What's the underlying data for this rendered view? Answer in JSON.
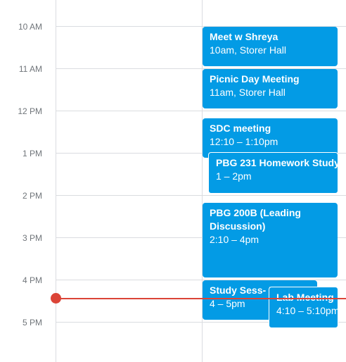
{
  "hours": [
    {
      "label": "10 AM"
    },
    {
      "label": "11 AM"
    },
    {
      "label": "12 PM"
    },
    {
      "label": "1 PM"
    },
    {
      "label": "2 PM"
    },
    {
      "label": "3 PM"
    },
    {
      "label": "4 PM"
    },
    {
      "label": "5 PM"
    }
  ],
  "events": [
    {
      "title": "Meet w Shreya",
      "meta": "10am, Storer Hall"
    },
    {
      "title": "Picnic Day Meeting",
      "meta": "11am, Storer Hall"
    },
    {
      "title": "SDC meeting",
      "meta": "12:10 – 1:10pm"
    },
    {
      "title": "PBG 231 Homework Study",
      "meta": "1 – 2pm"
    },
    {
      "title": "PBG 200B (Leading Discussion)",
      "meta": "2:10 – 4pm"
    },
    {
      "title": "Study Sess- PBG 231",
      "meta": "4 – 5pm"
    },
    {
      "title": "Lab Meeting",
      "meta": "4:10 – 5:10pm"
    }
  ],
  "colors": {
    "event": "#039be5",
    "now_indicator": "#db4437",
    "grid": "#dadce0",
    "hour_label": "#70757a"
  }
}
